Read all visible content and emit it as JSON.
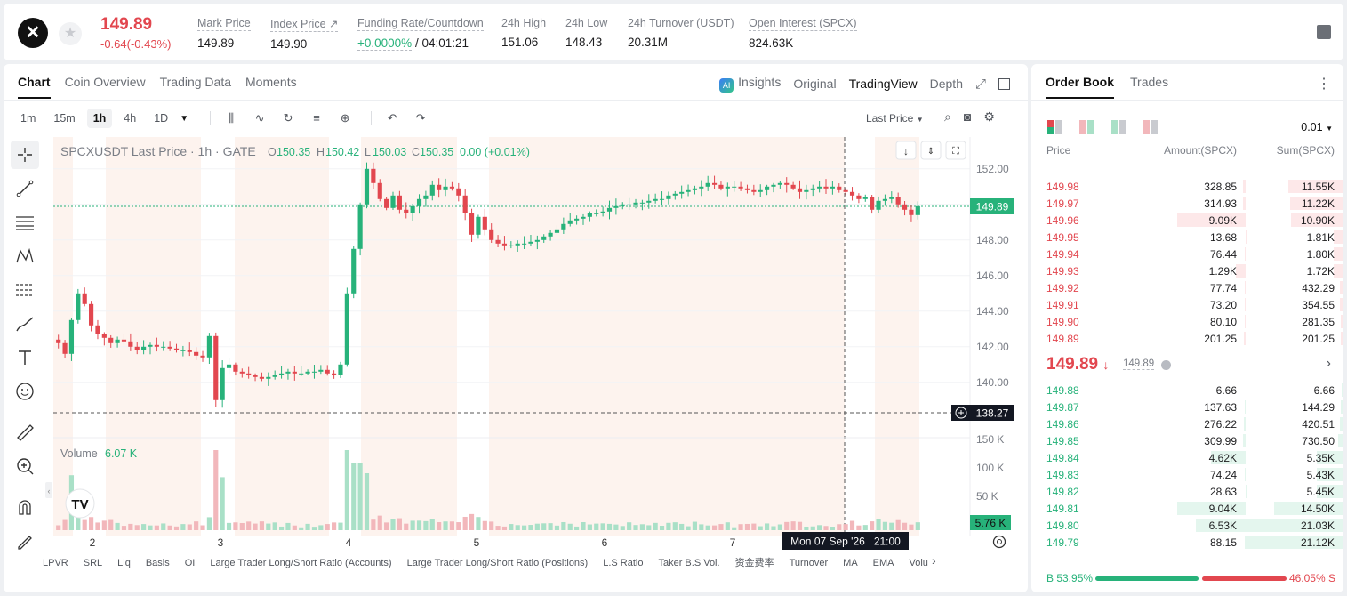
{
  "header": {
    "price": "149.89",
    "change": "-0.64(-0.43%)",
    "stats": [
      {
        "label": "Mark Price",
        "value": "149.89"
      },
      {
        "label": "Index Price ↗",
        "value": "149.90"
      },
      {
        "label": "Funding Rate/Countdown",
        "value_green": "+0.0000%",
        "value": " / 04:01:21"
      },
      {
        "label": "24h High",
        "value": "151.06"
      },
      {
        "label": "24h Low",
        "value": "148.43"
      },
      {
        "label": "24h Turnover (USDT)",
        "value": "20.31M"
      },
      {
        "label": "Open Interest (SPCX)",
        "value": "824.63K"
      }
    ]
  },
  "chart_panel": {
    "tabs": [
      "Chart",
      "Coin Overview",
      "Trading Data",
      "Moments"
    ],
    "view_tabs": [
      "Insights",
      "Original",
      "TradingView",
      "Depth"
    ],
    "intervals": [
      "1m",
      "15m",
      "1h",
      "4h",
      "1D"
    ],
    "active_interval": "1h",
    "price_source": "Last Price",
    "legend": {
      "symbol": "SPCXUSDT Last Price · 1h · GATE",
      "o": "150.35",
      "h": "150.42",
      "l": "150.03",
      "c": "150.35",
      "chg": "0.00 (+0.01%)"
    },
    "volume_label": "Volume",
    "volume_value": "6.07 K",
    "last_price_tag": "149.89",
    "crosshair_price": "138.27",
    "volume_tag": "5.76 K",
    "crosshair_time": "Mon 07 Sep '26   21:00",
    "x_labels": [
      "2",
      "3",
      "4",
      "5",
      "6",
      "7"
    ],
    "price_labels": [
      "152.00",
      "150.00",
      "148.00",
      "146.00",
      "144.00",
      "142.00",
      "140.00"
    ],
    "volume_labels": [
      "150 K",
      "100 K",
      "50 K"
    ],
    "indicators": [
      "LPVR",
      "SRL",
      "Liq",
      "Basis",
      "OI",
      "Large Trader Long/Short Ratio (Accounts)",
      "Large Trader Long/Short Ratio (Positions)",
      "L.S Ratio",
      "Taker B.S Vol.",
      "资金费率",
      "Turnover",
      "MA",
      "EMA",
      "Volu"
    ],
    "colors": {
      "up": "#27b27a",
      "down": "#e2474f"
    }
  },
  "chart_data": {
    "type": "candlestick",
    "title": "SPCXUSDT Last Price · 1h · GATE",
    "ylim": [
      138,
      153
    ],
    "x_ticks": [
      "2",
      "3",
      "4",
      "5",
      "6",
      "7"
    ],
    "close": [
      142.2,
      141.6,
      143.5,
      145.0,
      144.4,
      143.2,
      142.7,
      142.5,
      142.2,
      142.4,
      142.3,
      142.0,
      141.8,
      142.0,
      142.1,
      142.0,
      142.0,
      141.9,
      141.8,
      141.8,
      141.7,
      141.5,
      141.4,
      142.6,
      139.0,
      140.8,
      141.0,
      140.6,
      140.5,
      140.4,
      140.3,
      140.2,
      140.3,
      140.4,
      140.5,
      140.6,
      140.5,
      140.5,
      140.6,
      140.6,
      140.7,
      140.5,
      140.4,
      141.0,
      145.0,
      147.5,
      150.0,
      152.0,
      151.2,
      150.3,
      149.8,
      150.5,
      149.7,
      149.5,
      149.9,
      150.3,
      150.5,
      151.1,
      150.8,
      151.0,
      150.9,
      150.5,
      149.5,
      148.3,
      149.3,
      148.6,
      148.0,
      147.8,
      147.7,
      147.7,
      147.8,
      147.8,
      147.9,
      148.0,
      148.2,
      148.4,
      148.6,
      148.9,
      149.1,
      149.2,
      149.3,
      149.5,
      149.5,
      149.6,
      149.8,
      149.9,
      150.0,
      150.0,
      150.1,
      150.1,
      150.2,
      150.3,
      150.3,
      150.5,
      150.6,
      150.7,
      150.8,
      150.9,
      151.0,
      151.2,
      151.1,
      150.9,
      151.0,
      151.0,
      150.9,
      150.8,
      150.7,
      150.8,
      151.0,
      151.1,
      151.2,
      151.1,
      150.9,
      150.7,
      150.8,
      150.9,
      151.0,
      150.9,
      151.0,
      150.8,
      150.7,
      150.5,
      150.3,
      150.4,
      149.7,
      150.2,
      150.3,
      150.4,
      150.0,
      149.7,
      149.4,
      149.9
    ]
  },
  "order_book": {
    "tabs": [
      "Order Book",
      "Trades"
    ],
    "precision": "0.01",
    "headers": [
      "Price",
      "Amount(SPCX)",
      "Sum(SPCX)"
    ],
    "asks": [
      {
        "price": "149.98",
        "amount": "328.85",
        "sum": "11.55K"
      },
      {
        "price": "149.97",
        "amount": "314.93",
        "sum": "11.22K"
      },
      {
        "price": "149.96",
        "amount": "9.09K",
        "sum": "10.90K"
      },
      {
        "price": "149.95",
        "amount": "13.68",
        "sum": "1.81K"
      },
      {
        "price": "149.94",
        "amount": "76.44",
        "sum": "1.80K"
      },
      {
        "price": "149.93",
        "amount": "1.29K",
        "sum": "1.72K"
      },
      {
        "price": "149.92",
        "amount": "77.74",
        "sum": "432.29"
      },
      {
        "price": "149.91",
        "amount": "73.20",
        "sum": "354.55"
      },
      {
        "price": "149.90",
        "amount": "80.10",
        "sum": "281.35"
      },
      {
        "price": "149.89",
        "amount": "201.25",
        "sum": "201.25"
      }
    ],
    "mid_price": "149.89",
    "mid_mark": "149.89",
    "bids": [
      {
        "price": "149.88",
        "amount": "6.66",
        "sum": "6.66"
      },
      {
        "price": "149.87",
        "amount": "137.63",
        "sum": "144.29"
      },
      {
        "price": "149.86",
        "amount": "276.22",
        "sum": "420.51"
      },
      {
        "price": "149.85",
        "amount": "309.99",
        "sum": "730.50"
      },
      {
        "price": "149.84",
        "amount": "4.62K",
        "sum": "5.35K"
      },
      {
        "price": "149.83",
        "amount": "74.24",
        "sum": "5.43K"
      },
      {
        "price": "149.82",
        "amount": "28.63",
        "sum": "5.45K"
      },
      {
        "price": "149.81",
        "amount": "9.04K",
        "sum": "14.50K"
      },
      {
        "price": "149.80",
        "amount": "6.53K",
        "sum": "21.03K"
      },
      {
        "price": "149.79",
        "amount": "88.15",
        "sum": "21.12K"
      }
    ],
    "buy_ratio": "B 53.95%",
    "sell_ratio": "46.05% S",
    "buy_fraction": 0.5395
  }
}
